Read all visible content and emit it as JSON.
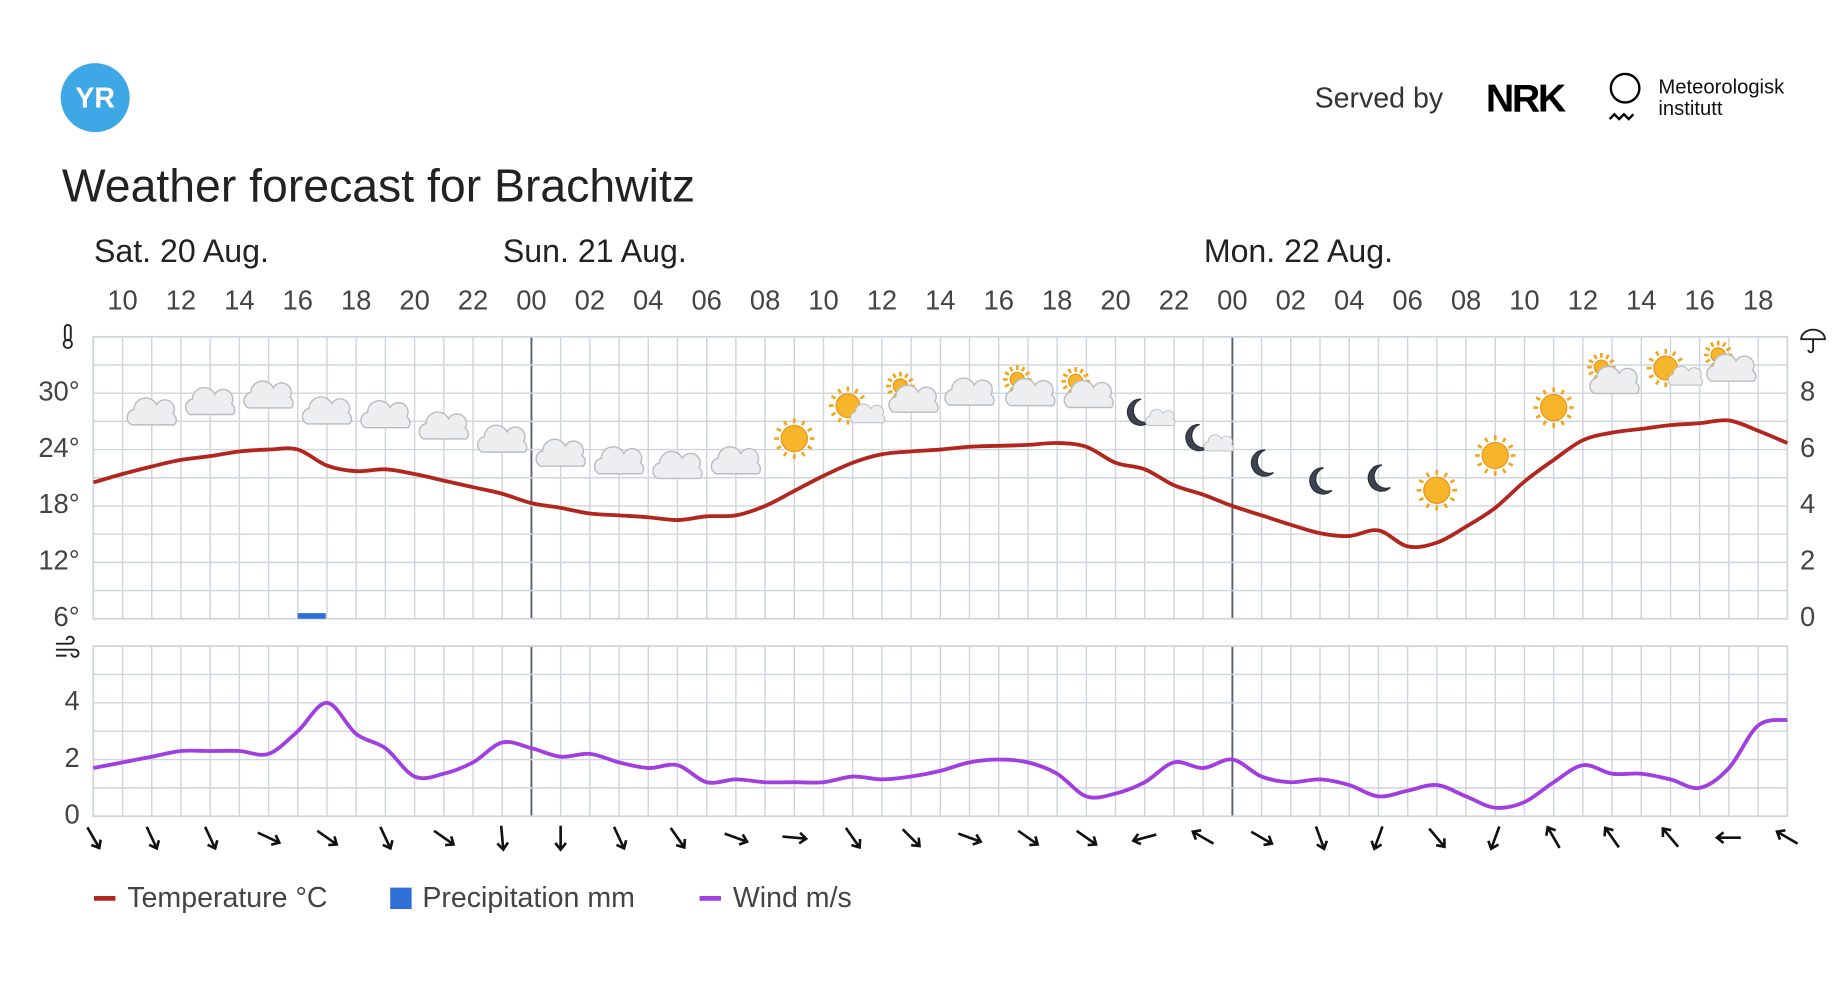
{
  "header": {
    "logo": "YR",
    "served_by": "Served by",
    "nrk": "NRK",
    "met_line1": "Meteorologisk",
    "met_line2": "institutt",
    "title": "Weather forecast for Brachwitz"
  },
  "chart_data": [
    {
      "type": "line",
      "days": [
        "Sat. 20 Aug.",
        "Sun. 21 Aug.",
        "Mon. 22 Aug."
      ],
      "categories": [
        null,
        "10",
        null,
        "12",
        null,
        "14",
        null,
        "16",
        null,
        "18",
        null,
        "20",
        null,
        "22",
        null,
        "00",
        null,
        "02",
        null,
        "04",
        null,
        "06",
        null,
        "08",
        null,
        "10",
        null,
        "12",
        null,
        "14",
        null,
        "16",
        null,
        "18",
        null,
        "20",
        null,
        "22",
        null,
        "00",
        null,
        "02",
        null,
        "04",
        null,
        "06",
        null,
        "08",
        null,
        "10",
        null,
        "12",
        null,
        "14",
        null,
        "16",
        null,
        "18",
        null
      ],
      "ylim": [
        6,
        36
      ],
      "yticks": [
        {
          "value": 6,
          "label": "6°"
        },
        {
          "value": 12,
          "label": "12°"
        },
        {
          "value": 18,
          "label": "18°"
        },
        {
          "value": 24,
          "label": "24°"
        },
        {
          "value": 30,
          "label": "30°"
        }
      ],
      "y2lim": [
        0,
        10
      ],
      "y2ticks": [
        0,
        2,
        4,
        6,
        8
      ],
      "grid": true,
      "series": [
        {
          "name": "Temperature °C",
          "color": "#b3261e",
          "values": [
            20.5,
            21.4,
            22.2,
            22.9,
            23.3,
            23.8,
            24.0,
            24.0,
            22.3,
            21.7,
            21.9,
            21.4,
            20.7,
            20.0,
            19.3,
            18.3,
            17.8,
            17.2,
            17.0,
            16.8,
            16.5,
            16.9,
            17.0,
            18.0,
            19.6,
            21.2,
            22.6,
            23.5,
            23.8,
            24.0,
            24.3,
            24.4,
            24.5,
            24.7,
            24.3,
            22.6,
            21.9,
            20.2,
            19.2,
            18.0,
            17.0,
            16.0,
            15.1,
            14.8,
            15.4,
            13.7,
            14.1,
            15.8,
            17.8,
            20.6,
            22.9,
            25.0,
            25.8,
            26.2,
            26.6,
            26.8,
            27.1,
            26.0,
            24.7
          ]
        },
        {
          "name": "Precipitation mm",
          "type": "bar",
          "axis": "y2",
          "color": "#2f6fd6",
          "values": [
            0,
            0,
            0,
            0,
            0,
            0,
            0,
            0.2,
            0,
            0,
            0,
            0,
            0,
            0,
            0,
            0,
            0,
            0,
            0,
            0,
            0,
            0,
            0,
            0,
            0,
            0,
            0,
            0,
            0,
            0,
            0,
            0,
            0,
            0,
            0,
            0,
            0,
            0,
            0,
            0,
            0,
            0,
            0,
            0,
            0,
            0,
            0,
            0,
            0,
            0,
            0,
            0,
            0,
            0,
            0,
            0,
            0,
            0,
            0
          ]
        }
      ]
    },
    {
      "type": "line",
      "ylim": [
        0,
        6
      ],
      "yticks": [
        0,
        2,
        4
      ],
      "grid": true,
      "series": [
        {
          "name": "Wind m/s",
          "color": "#a13ee0",
          "values": [
            1.7,
            1.9,
            2.1,
            2.3,
            2.3,
            2.3,
            2.2,
            3.0,
            4.0,
            2.9,
            2.4,
            1.4,
            1.5,
            1.9,
            2.6,
            2.4,
            2.1,
            2.2,
            1.9,
            1.7,
            1.8,
            1.2,
            1.3,
            1.2,
            1.2,
            1.2,
            1.4,
            1.3,
            1.4,
            1.6,
            1.9,
            2.0,
            1.9,
            1.5,
            0.7,
            0.8,
            1.2,
            1.9,
            1.7,
            2.0,
            1.4,
            1.2,
            1.3,
            1.1,
            0.7,
            0.9,
            1.1,
            0.7,
            0.3,
            0.5,
            1.2,
            1.8,
            1.5,
            1.5,
            1.3,
            1.0,
            1.7,
            3.2,
            3.4
          ]
        }
      ]
    }
  ]
}
